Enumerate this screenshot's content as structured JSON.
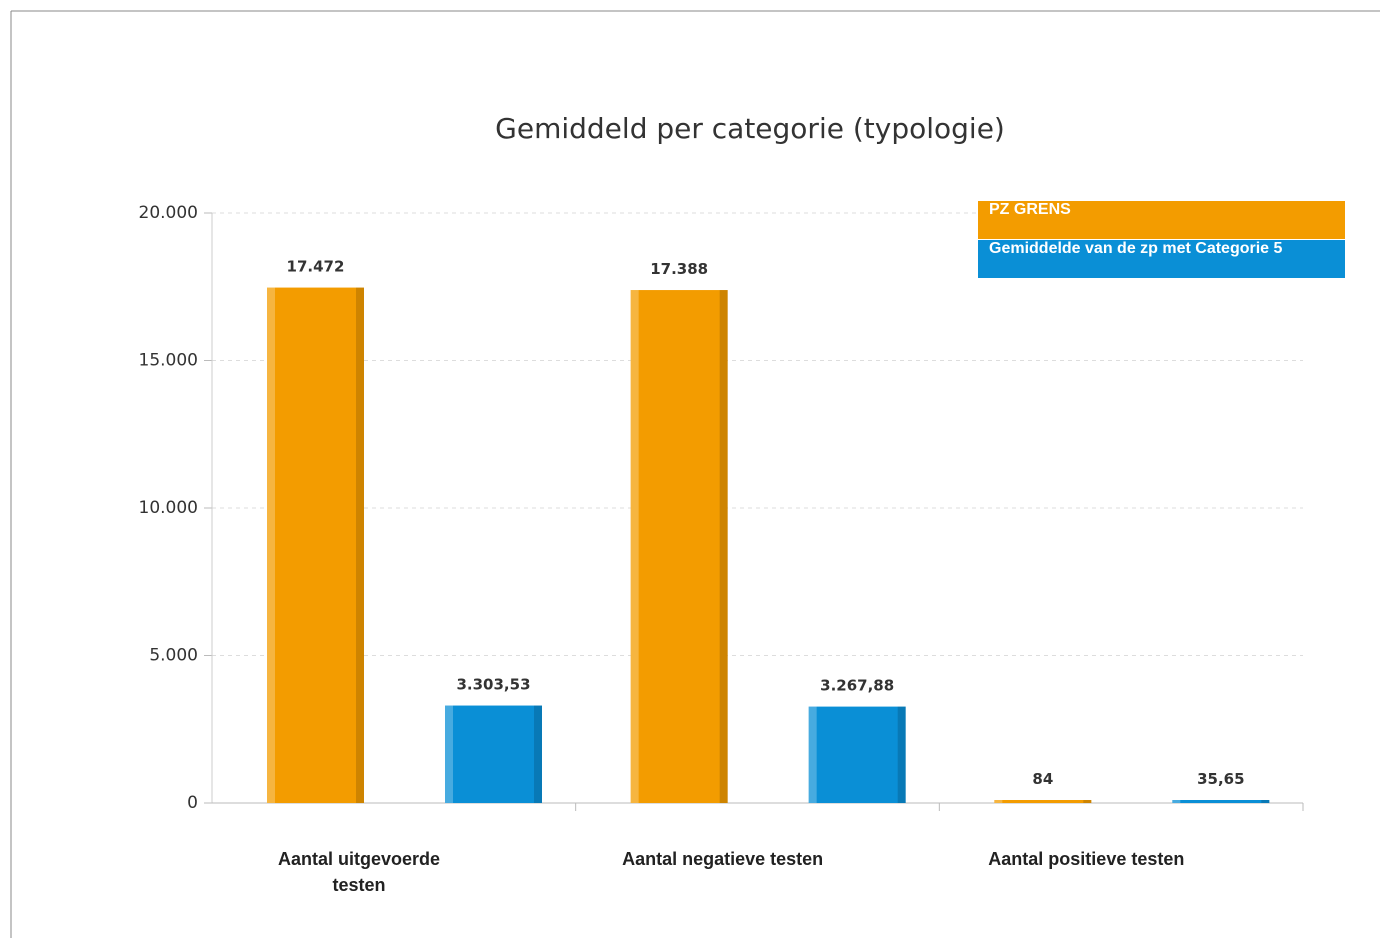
{
  "chart_data": {
    "type": "bar",
    "title": "Gemiddeld per categorie (typologie)",
    "categories": [
      "Aantal uitgevoerde testen",
      "Aantal negatieve testen",
      "Aantal positieve testen"
    ],
    "series": [
      {
        "name": "PZ GRENS",
        "color": "#f39c00",
        "values": [
          17472,
          17388,
          84
        ],
        "value_labels": [
          "17.472",
          "17.388",
          "84"
        ]
      },
      {
        "name": "Gemiddelde van de zp met Categorie 5",
        "color": "#0a8fd6",
        "values": [
          3303.53,
          3267.88,
          35.65
        ],
        "value_labels": [
          "3.303,53",
          "3.267,88",
          "35,65"
        ]
      }
    ],
    "ylim": [
      0,
      20000
    ],
    "yticks": [
      0,
      {
        "value": 5000,
        "label": "5.000"
      },
      {
        "value": 10000,
        "label": "10.000"
      },
      {
        "value": 15000,
        "label": "15.000"
      },
      {
        "value": 20000,
        "label": "20.000"
      }
    ],
    "grid": true,
    "legend": "top-right"
  }
}
